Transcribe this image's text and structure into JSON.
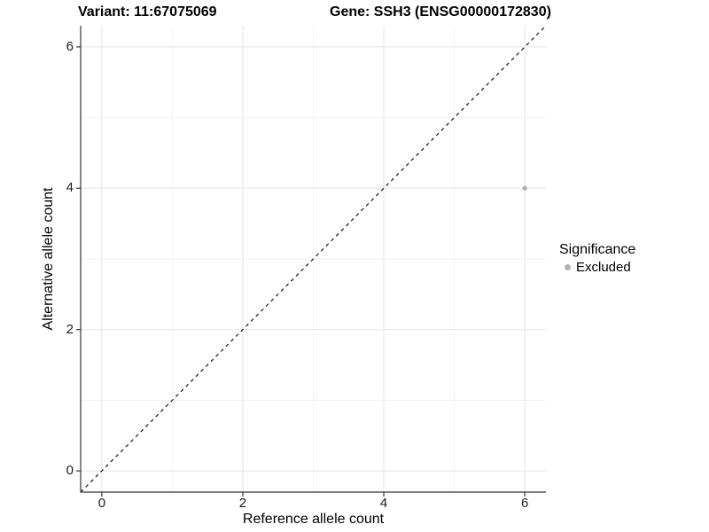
{
  "titles": {
    "variant": "Variant: 11:67075069",
    "gene": "Gene: SSH3 (ENSG00000172830)"
  },
  "chart_data": {
    "type": "scatter",
    "title_left": "Variant: 11:67075069",
    "title_right": "Gene: SSH3 (ENSG00000172830)",
    "xlabel": "Reference allele count",
    "ylabel": "Alternative allele count",
    "xlim": [
      -0.3,
      6.3
    ],
    "ylim": [
      -0.3,
      6.3
    ],
    "x_major_ticks": [
      0,
      2,
      4,
      6
    ],
    "y_major_ticks": [
      0,
      2,
      4,
      6
    ],
    "x_minor_gridlines": [
      1,
      3,
      5
    ],
    "y_minor_gridlines": [
      1,
      3,
      5
    ],
    "grid": "on",
    "legend_position": "right",
    "reference_line": {
      "type": "identity-diagonal",
      "style": "dashed",
      "color": "#000000"
    },
    "series": [
      {
        "name": "Excluded",
        "color": "#b3b3b3",
        "points": [
          {
            "x": 6,
            "y": 4
          }
        ]
      }
    ],
    "legend": {
      "title": "Significance",
      "entries": [
        {
          "label": "Excluded",
          "color": "#b3b3b3"
        }
      ]
    }
  },
  "colors": {
    "background": "#ffffff",
    "axis": "#333333",
    "tick": "#333333",
    "grid_major": "#e4e4e4",
    "grid_minor": "#f2f2f2",
    "point": "#b3b3b3",
    "dashed_line": "#000000",
    "text": "#000000"
  }
}
